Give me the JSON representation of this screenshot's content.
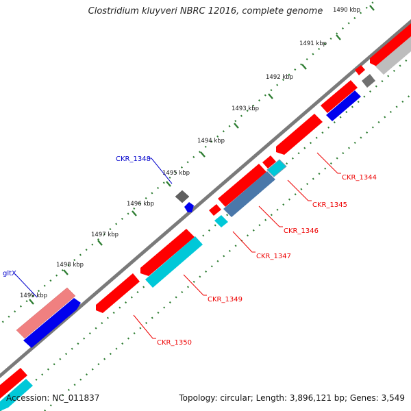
{
  "title": "Clostridium kluyveri NBRC 12016, complete genome",
  "footer": {
    "accession": "Accession: NC_011837",
    "info": "Topology: circular; Length: 3,896,121 bp; Genes: 3,549"
  },
  "scale_ticks": [
    "1490 kbp",
    "1491 kbp",
    "1492 kbp",
    "1493 kbp",
    "1494 kbp",
    "1495 kbp",
    "1496 kbp",
    "1497 kbp",
    "1498 kbp",
    "1499 kbp"
  ],
  "gene_labels": {
    "ckr_1344": "CKR_1344",
    "ckr_1345": "CKR_1345",
    "ckr_1346": "CKR_1346",
    "ckr_1347": "CKR_1347",
    "ckr_1348": "CKR_1348",
    "ckr_1349": "CKR_1349",
    "ckr_1350": "CKR_1350",
    "gltx": "gltX"
  },
  "colors": {
    "backbone": "#808080",
    "tick_dots": "#2e7d32",
    "gene_red": "#ff0000",
    "gene_blue": "#0000ee",
    "gene_cyan": "#00c8d8",
    "gene_steel": "#4a78aa",
    "gene_gray": "#707070",
    "gene_pink": "#f08080",
    "label_red": "#ee0000",
    "label_blue": "#0000cc"
  }
}
